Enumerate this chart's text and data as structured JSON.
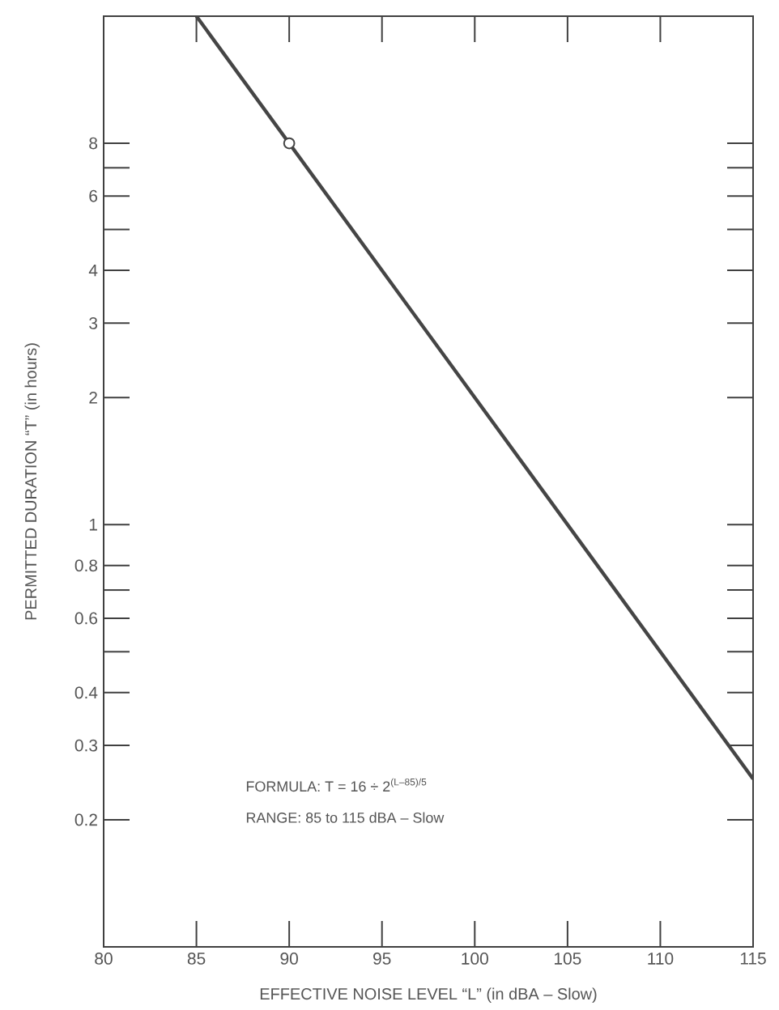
{
  "chart_data": {
    "type": "line",
    "log": "y",
    "xlabel": "EFFECTIVE NOISE LEVEL “L” (in dBA – Slow)",
    "ylabel": "PERMITTED DURATION “T” (in hours)",
    "xlim": [
      80,
      115
    ],
    "xticks": [
      80,
      85,
      90,
      95,
      100,
      105,
      110,
      115
    ],
    "ylim": [
      0.1,
      16
    ],
    "yticks": [
      0.2,
      0.3,
      0.4,
      {
        "value": 0.5,
        "label": null
      },
      0.6,
      {
        "value": 0.7,
        "label": null
      },
      0.8,
      1,
      2,
      3,
      4,
      {
        "value": 5,
        "label": null
      },
      6,
      {
        "value": 7,
        "label": null
      },
      8
    ],
    "series": [
      {
        "type": "line",
        "color": "#454545",
        "marker": "none",
        "x": [
          85,
          115
        ],
        "values": [
          16,
          0.25
        ]
      },
      {
        "type": "scatter",
        "color": "#454545",
        "marker": "circle",
        "x": [
          90
        ],
        "values": [
          8
        ]
      }
    ],
    "annotations": [
      "FORMULA: T = 16 ÷ 2$^{(L–85)/5}$",
      "RANGE: 85 to 115 dBA – Slow"
    ]
  }
}
